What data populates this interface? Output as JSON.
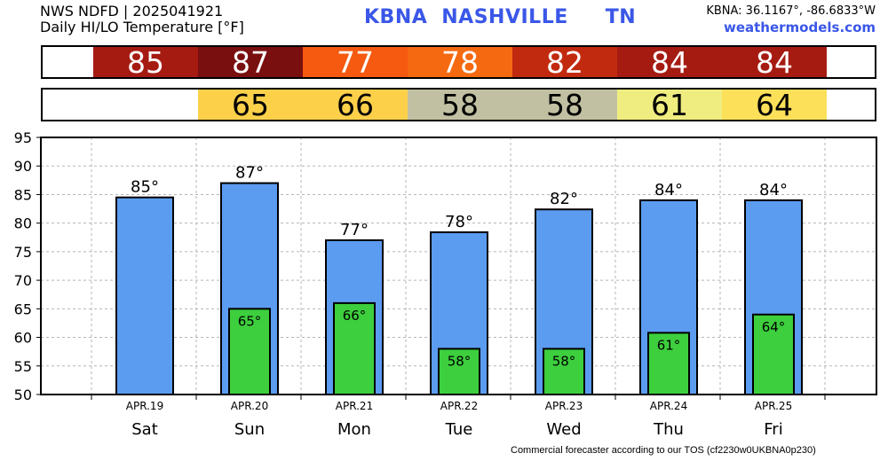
{
  "header": {
    "line1": "NWS NDFD | 2025041921",
    "line2": "Daily HI/LO Temperature [°F]",
    "station_code": "KBNA",
    "city": "NASHVILLE",
    "state": "TN",
    "coords": "KBNA: 36.1167°, -86.6833°W",
    "site": "weathermodels.com"
  },
  "footer": "Commercial forecaster according to our TOS (cf2230w0UKBNA0p230)",
  "colors": {
    "hi_bar": "#5b9cf0",
    "lo_bar": "#3dcf3d",
    "hi_strip": [
      "#a51b12",
      "#7a0f0f",
      "#f55a10",
      "#f56a10",
      "#c22a10",
      "#a51b12",
      "#a51b12"
    ],
    "lo_strip": [
      null,
      "#fdd04a",
      "#fdd04a",
      "#c2c0a2",
      "#c2c0a2",
      "#efec80",
      "#fde05a"
    ]
  },
  "strips": {
    "hi": [
      "85",
      "87",
      "77",
      "78",
      "82",
      "84",
      "84"
    ],
    "lo": [
      "",
      "65",
      "66",
      "58",
      "58",
      "61",
      "64"
    ]
  },
  "chart_data": {
    "type": "bar",
    "categories": [
      "Sat",
      "Sun",
      "Mon",
      "Tue",
      "Wed",
      "Thu",
      "Fri"
    ],
    "dates": [
      "APR.19",
      "APR.20",
      "APR.21",
      "APR.22",
      "APR.23",
      "APR.24",
      "APR.25"
    ],
    "series": [
      {
        "values": [
          84.5,
          87,
          77,
          78.4,
          82.4,
          84,
          84
        ],
        "labels": [
          "85°",
          "87°",
          "77°",
          "78°",
          "82°",
          "84°",
          "84°"
        ]
      },
      {
        "values": [
          null,
          65,
          66,
          58,
          58,
          60.8,
          64
        ],
        "labels": [
          "",
          "65°",
          "66°",
          "58°",
          "58°",
          "61°",
          "64°"
        ]
      }
    ],
    "ylim": [
      50,
      95
    ],
    "yticks": [
      50,
      55,
      60,
      65,
      70,
      75,
      80,
      85,
      90,
      95
    ],
    "grid": true
  }
}
